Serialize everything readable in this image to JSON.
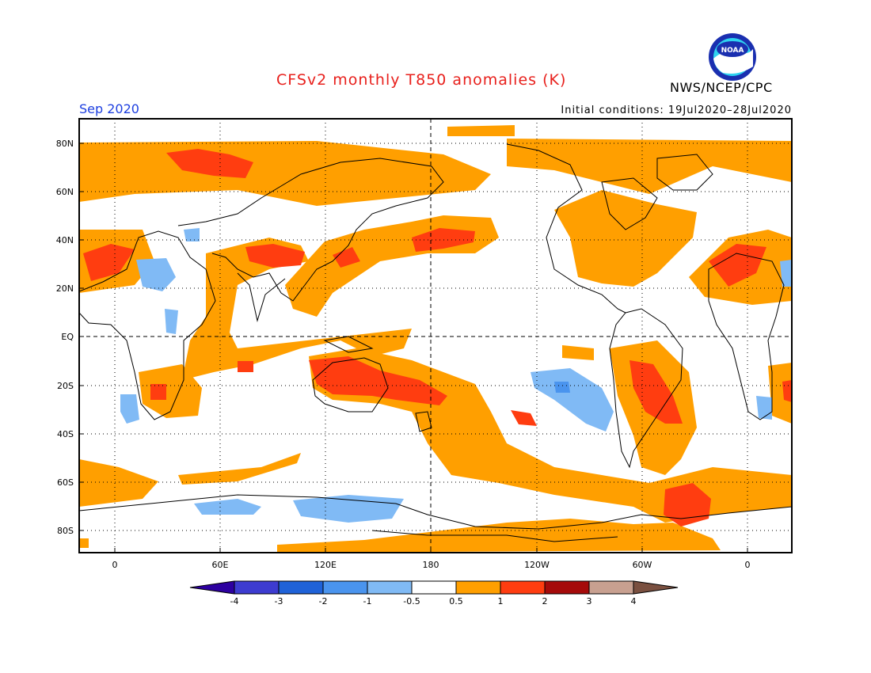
{
  "header": {
    "title": "CFSv2 monthly T850 anomalies (K)",
    "organization": "NWS/NCEP/CPC",
    "valid_month": "Sep 2020",
    "initial_conditions": "Initial conditions: 19Jul2020–28Jul2020",
    "logo_text": "NOAA"
  },
  "map": {
    "lat_labels": [
      "80N",
      "60N",
      "40N",
      "20N",
      "EQ",
      "20S",
      "40S",
      "60S",
      "80S"
    ],
    "lon_labels": [
      "0",
      "60E",
      "120E",
      "180",
      "120W",
      "60W",
      "0"
    ],
    "gridlines": "dotted",
    "equator_dateline": "dashed"
  },
  "colorbar": {
    "labels": [
      "-4",
      "-3",
      "-2",
      "-1",
      "-0.5",
      "0.5",
      "1",
      "2",
      "3",
      "4"
    ],
    "colors": [
      "#2d00a0",
      "#3d3cd0",
      "#1f62d8",
      "#4a94ee",
      "#80baf5",
      "#ffffff",
      "#ff9f00",
      "#ff3d10",
      "#a50a0a",
      "#c8a090",
      "#7a5040"
    ]
  },
  "palette": {
    "warm1": "#ff9f00",
    "warm2": "#ff3d10",
    "cool1": "#80baf5",
    "cool2": "#4a94ee",
    "coast": "#000000",
    "title": "#e8201c",
    "month": "#1d3fe0"
  }
}
